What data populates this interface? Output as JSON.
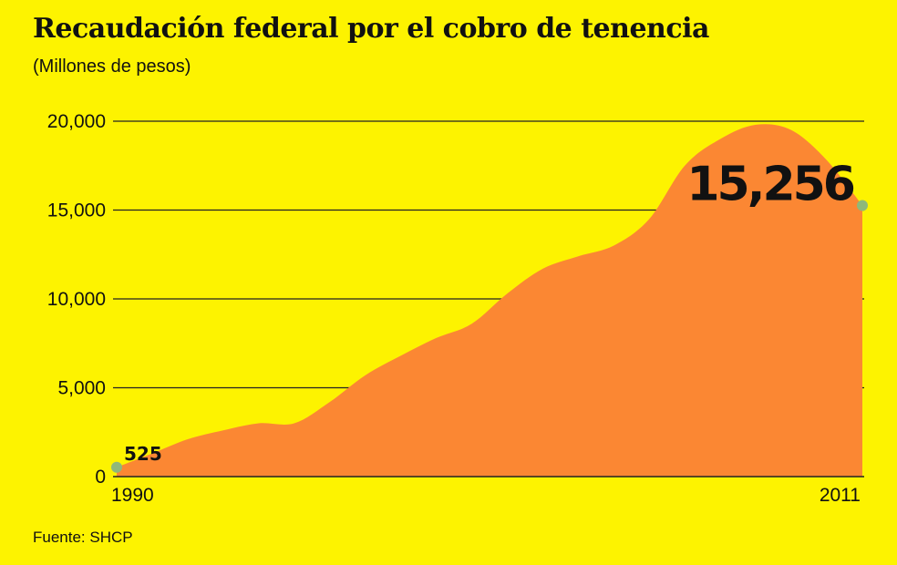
{
  "title": "Recaudación federal por el cobro de tenencia",
  "subtitle": "(Millones de pesos)",
  "source": "Fuente: SHCP",
  "colors": {
    "background": "#fdf300",
    "area": "#fb8733",
    "marker": "#8fb87a",
    "grid": "#222222"
  },
  "chart_data": {
    "type": "area",
    "title": "Recaudación federal por el cobro de tenencia",
    "ylabel": "(Millones de pesos)",
    "xlabel": "",
    "ylim": [
      0,
      20000
    ],
    "yticks": [
      0,
      5000,
      10000,
      15000,
      20000
    ],
    "ytick_labels": [
      "0",
      "5,000",
      "10,000",
      "15,000",
      "20,000"
    ],
    "xtick_labels": [
      "1990",
      "2011"
    ],
    "x": [
      1990,
      1991,
      1992,
      1993,
      1994,
      1995,
      1996,
      1997,
      1998,
      1999,
      2000,
      2001,
      2002,
      2003,
      2004,
      2005,
      2006,
      2007,
      2008,
      2009,
      2010,
      2011
    ],
    "values": [
      525,
      1300,
      2100,
      2600,
      3000,
      3000,
      4200,
      5700,
      6800,
      7800,
      8600,
      10300,
      11700,
      12400,
      13000,
      14500,
      17500,
      19000,
      19800,
      19500,
      17800,
      15256
    ],
    "annotations": [
      {
        "x": 1990,
        "y": 525,
        "text": "525"
      },
      {
        "x": 2011,
        "y": 15256,
        "text": "15,256"
      }
    ],
    "grid": true
  }
}
